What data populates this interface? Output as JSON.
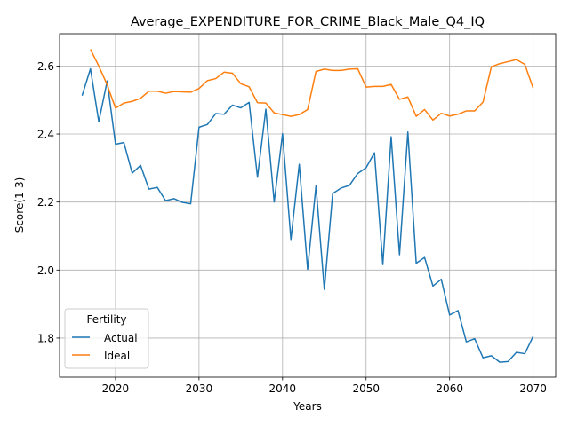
{
  "chart_data": {
    "type": "line",
    "title": "Average_EXPENDITURE_FOR_CRIME_Black_Male_Q4_IQ",
    "xlabel": "Years",
    "ylabel": "Score(1-3)",
    "xlim": [
      2013.3,
      2072.7
    ],
    "ylim": [
      1.685,
      2.695
    ],
    "xticks": [
      2020,
      2030,
      2040,
      2050,
      2060,
      2070
    ],
    "yticks": [
      1.8,
      2.0,
      2.2,
      2.4,
      2.6
    ],
    "ytick_labels": [
      "1.8",
      "2.0",
      "2.2",
      "2.4",
      "2.6"
    ],
    "grid": true,
    "legend": {
      "title": "Fertility",
      "placement": "lower-left"
    },
    "series": [
      {
        "name": "Actual",
        "color": "#1f77b4",
        "x": [
          2016,
          2017,
          2018,
          2019,
          2020,
          2021,
          2022,
          2023,
          2024,
          2025,
          2026,
          2027,
          2028,
          2029,
          2030,
          2031,
          2032,
          2033,
          2034,
          2035,
          2036,
          2037,
          2038,
          2039,
          2040,
          2041,
          2042,
          2043,
          2044,
          2045,
          2046,
          2047,
          2048,
          2049,
          2050,
          2051,
          2052,
          2053,
          2054,
          2055,
          2056,
          2057,
          2058,
          2059,
          2060,
          2061,
          2062,
          2063,
          2064,
          2065,
          2066,
          2067,
          2068,
          2069,
          2070
        ],
        "values": [
          2.513,
          2.592,
          2.436,
          2.556,
          2.37,
          2.375,
          2.285,
          2.308,
          2.238,
          2.243,
          2.204,
          2.21,
          2.199,
          2.195,
          2.42,
          2.428,
          2.46,
          2.458,
          2.485,
          2.477,
          2.493,
          2.273,
          2.473,
          2.2,
          2.401,
          2.09,
          2.311,
          2.002,
          2.247,
          1.943,
          2.225,
          2.241,
          2.249,
          2.284,
          2.301,
          2.345,
          2.016,
          2.392,
          2.045,
          2.406,
          2.02,
          2.037,
          1.953,
          1.973,
          1.868,
          1.881,
          1.789,
          1.798,
          1.742,
          1.748,
          1.729,
          1.731,
          1.758,
          1.754,
          1.805
        ]
      },
      {
        "name": "Ideal",
        "color": "#ff7f0e",
        "x": [
          2017,
          2018,
          2019,
          2020,
          2021,
          2022,
          2023,
          2024,
          2025,
          2026,
          2027,
          2028,
          2029,
          2030,
          2031,
          2032,
          2033,
          2034,
          2035,
          2036,
          2037,
          2038,
          2039,
          2040,
          2041,
          2042,
          2043,
          2044,
          2045,
          2046,
          2047,
          2048,
          2049,
          2050,
          2051,
          2052,
          2053,
          2054,
          2055,
          2056,
          2057,
          2058,
          2059,
          2060,
          2061,
          2062,
          2063,
          2064,
          2065,
          2066,
          2067,
          2068,
          2069,
          2070
        ],
        "values": [
          2.649,
          2.6,
          2.545,
          2.476,
          2.491,
          2.496,
          2.505,
          2.526,
          2.526,
          2.52,
          2.525,
          2.524,
          2.523,
          2.534,
          2.557,
          2.563,
          2.582,
          2.579,
          2.548,
          2.539,
          2.492,
          2.491,
          2.462,
          2.457,
          2.452,
          2.457,
          2.472,
          2.584,
          2.591,
          2.587,
          2.587,
          2.591,
          2.592,
          2.538,
          2.54,
          2.54,
          2.546,
          2.502,
          2.509,
          2.452,
          2.472,
          2.441,
          2.461,
          2.453,
          2.458,
          2.468,
          2.468,
          2.494,
          2.598,
          2.607,
          2.613,
          2.619,
          2.605,
          2.535
        ]
      }
    ]
  }
}
